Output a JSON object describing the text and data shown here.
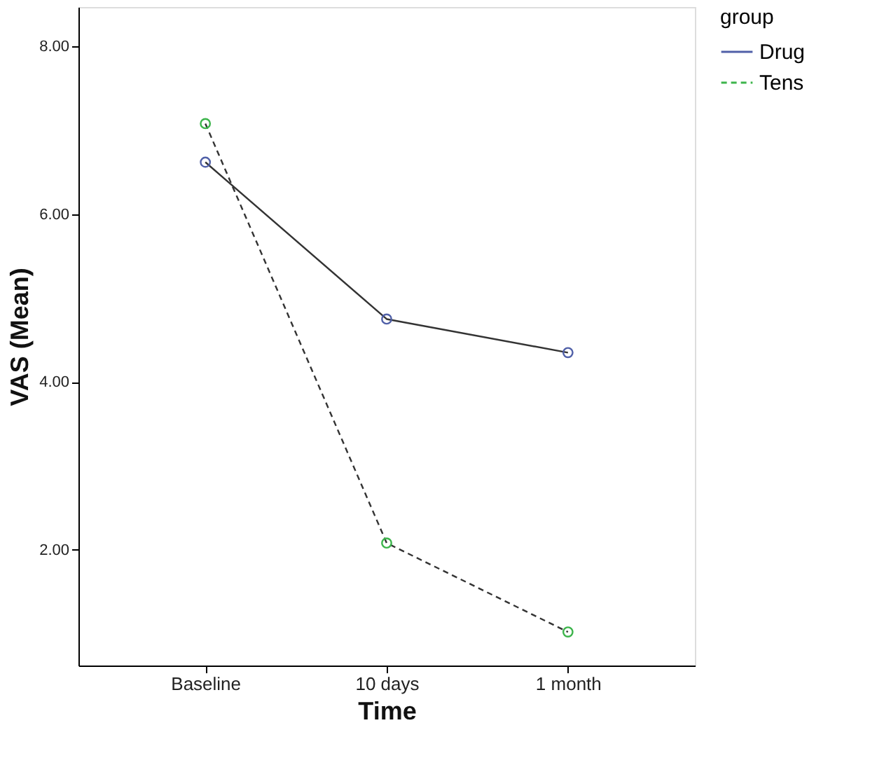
{
  "chart_data": {
    "type": "line",
    "xlabel": "Time",
    "ylabel": "VAS (Mean)",
    "legend_title": "group",
    "categories": [
      "Baseline",
      "10 days",
      "1 month"
    ],
    "series": [
      {
        "name": "Drug",
        "color": "#5060a8",
        "values": [
          6.62,
          4.75,
          4.35
        ],
        "line_style": "solid"
      },
      {
        "name": "Tens",
        "color": "#3cb44b",
        "values": [
          7.08,
          2.08,
          1.02
        ],
        "line_style": "dashed"
      }
    ],
    "ylim": [
      0.62,
      8.47
    ],
    "yticks": [
      {
        "value": 2,
        "label": "2.00"
      },
      {
        "value": 4,
        "label": "4.00"
      },
      {
        "value": 6,
        "label": "6.00"
      },
      {
        "value": 8,
        "label": "8.00"
      }
    ],
    "marker": "circle",
    "grid": false,
    "legend": "top right"
  }
}
